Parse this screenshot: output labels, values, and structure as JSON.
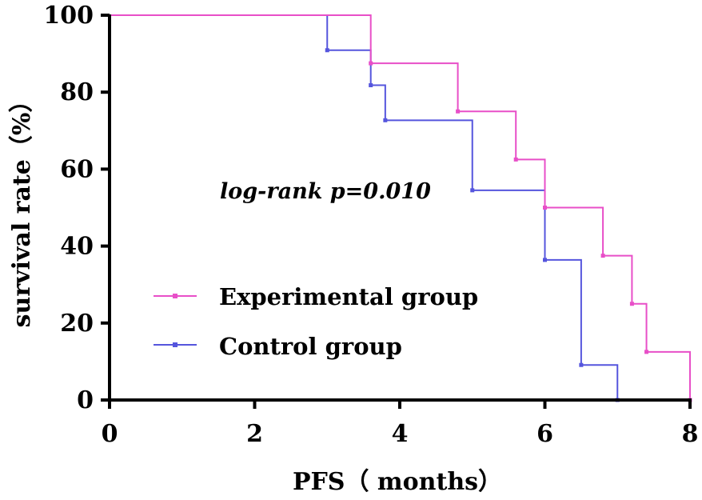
{
  "chart_data": {
    "type": "line",
    "subtype": "kaplan-meier-step",
    "title": "",
    "xlabel": "PFS（ months）",
    "ylabel": "survival rate（%）",
    "xlim": [
      0,
      8
    ],
    "ylim": [
      0,
      100
    ],
    "x_ticks": [
      0,
      2,
      4,
      6,
      8
    ],
    "y_ticks": [
      0,
      20,
      40,
      60,
      80,
      100
    ],
    "x_tick_labels": [
      "0",
      "2",
      "4",
      "6",
      "8"
    ],
    "y_tick_labels": [
      "0",
      "20",
      "40",
      "60",
      "80",
      "100"
    ],
    "grid": false,
    "legend_position": "bottom-left",
    "annotation": "log-rank p=0.010",
    "series": [
      {
        "name": "Experimental group",
        "color": "#e84fc8",
        "step_x": [
          0,
          3.6,
          4.8,
          5.6,
          6.0,
          6.8,
          7.2,
          7.4,
          8.0
        ],
        "step_y": [
          100,
          87.5,
          75,
          62.5,
          50,
          37.5,
          25,
          12.5,
          0
        ],
        "censor_x": [
          3.6,
          4.8,
          5.6,
          6.0,
          6.8,
          7.2,
          7.4,
          8.0
        ],
        "censor_y": [
          87.5,
          75,
          62.5,
          50,
          37.5,
          25,
          12.5,
          0
        ]
      },
      {
        "name": "Control group",
        "color": "#5555dd",
        "step_x": [
          0,
          3.0,
          3.6,
          3.8,
          5.0,
          6.0,
          6.5,
          7.0
        ],
        "step_y": [
          100,
          90.9,
          81.8,
          72.7,
          54.5,
          36.4,
          9.1,
          0
        ],
        "censor_x": [
          3.0,
          3.6,
          3.8,
          5.0,
          6.0,
          6.5,
          7.0
        ],
        "censor_y": [
          90.9,
          81.8,
          72.7,
          54.5,
          36.4,
          9.1,
          0
        ]
      }
    ]
  }
}
